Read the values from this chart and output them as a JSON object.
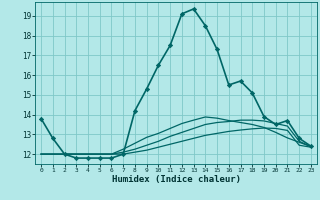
{
  "title": "",
  "xlabel": "Humidex (Indice chaleur)",
  "bg_color": "#b3e8e8",
  "grid_color": "#7fc8c8",
  "line_color": "#006666",
  "xlim": [
    -0.5,
    23.5
  ],
  "ylim": [
    11.5,
    19.7
  ],
  "xticks": [
    0,
    1,
    2,
    3,
    4,
    5,
    6,
    7,
    8,
    9,
    10,
    11,
    12,
    13,
    14,
    15,
    16,
    17,
    18,
    19,
    20,
    21,
    22,
    23
  ],
  "yticks": [
    12,
    13,
    14,
    15,
    16,
    17,
    18,
    19
  ],
  "lines": [
    {
      "x": [
        0,
        1,
        2,
        3,
        4,
        5,
        6,
        7,
        8,
        9,
        10,
        11,
        12,
        13,
        14,
        15,
        16,
        17,
        18,
        19,
        20,
        21,
        22,
        23
      ],
      "y": [
        13.8,
        12.8,
        12.0,
        11.8,
        11.8,
        11.8,
        11.8,
        12.0,
        14.2,
        15.3,
        16.5,
        17.5,
        19.1,
        19.35,
        18.5,
        17.3,
        15.5,
        15.7,
        15.1,
        13.9,
        13.5,
        13.7,
        12.8,
        12.4
      ],
      "marker": "D",
      "markersize": 2.2,
      "linewidth": 1.2
    },
    {
      "x": [
        0,
        1,
        2,
        3,
        4,
        5,
        6,
        7,
        8,
        9,
        10,
        11,
        12,
        13,
        14,
        15,
        16,
        17,
        18,
        19,
        20,
        21,
        22,
        23
      ],
      "y": [
        12.0,
        12.0,
        12.0,
        12.0,
        12.0,
        12.0,
        12.0,
        12.0,
        12.1,
        12.2,
        12.35,
        12.5,
        12.65,
        12.8,
        12.95,
        13.05,
        13.15,
        13.22,
        13.28,
        13.32,
        13.3,
        13.2,
        12.45,
        12.35
      ],
      "marker": null,
      "linewidth": 0.9
    },
    {
      "x": [
        0,
        1,
        2,
        3,
        4,
        5,
        6,
        7,
        8,
        9,
        10,
        11,
        12,
        13,
        14,
        15,
        16,
        17,
        18,
        19,
        20,
        21,
        22,
        23
      ],
      "y": [
        12.0,
        12.0,
        12.0,
        12.0,
        12.0,
        12.0,
        12.0,
        12.1,
        12.25,
        12.45,
        12.65,
        12.9,
        13.1,
        13.3,
        13.5,
        13.6,
        13.65,
        13.72,
        13.72,
        13.68,
        13.55,
        13.42,
        12.65,
        12.38
      ],
      "marker": null,
      "linewidth": 0.9
    },
    {
      "x": [
        0,
        1,
        2,
        3,
        4,
        5,
        6,
        7,
        8,
        9,
        10,
        11,
        12,
        13,
        14,
        15,
        16,
        17,
        18,
        19,
        20,
        21,
        22,
        23
      ],
      "y": [
        12.0,
        12.0,
        12.0,
        12.0,
        12.0,
        12.0,
        12.0,
        12.25,
        12.55,
        12.85,
        13.05,
        13.3,
        13.55,
        13.72,
        13.88,
        13.82,
        13.7,
        13.6,
        13.5,
        13.35,
        13.1,
        12.82,
        12.6,
        12.38
      ],
      "marker": null,
      "linewidth": 0.9
    }
  ]
}
